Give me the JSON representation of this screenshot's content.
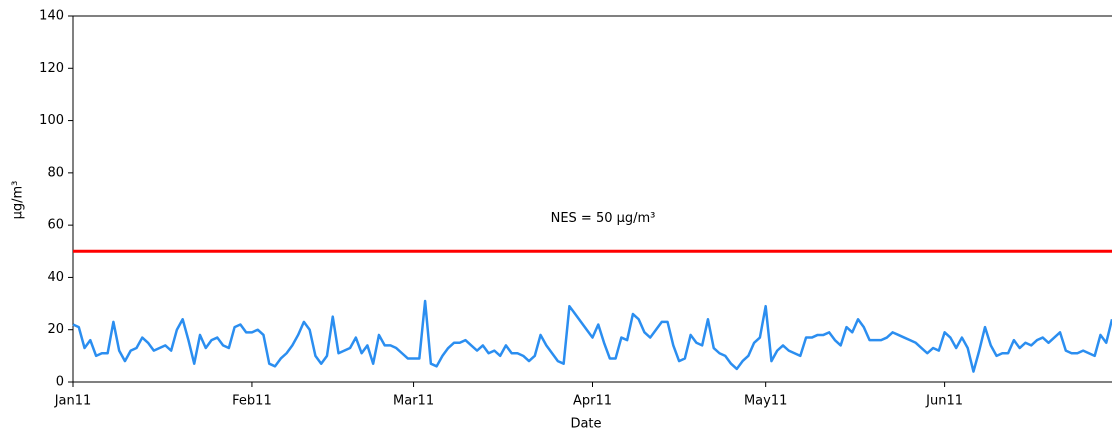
{
  "chart_data": {
    "type": "line",
    "xlabel": "Date",
    "ylabel": "µg/m³",
    "series": [
      {
        "color": "#2b8ef0",
        "values": [
          22,
          21,
          13,
          16,
          10,
          11,
          11,
          23,
          12,
          8,
          12,
          13,
          17,
          15,
          12,
          13,
          14,
          12,
          20,
          24,
          16,
          7,
          18,
          13,
          16,
          17,
          14,
          13,
          21,
          22,
          19,
          19,
          20,
          18,
          7,
          6,
          9,
          11,
          14,
          18,
          23,
          20,
          10,
          7,
          10,
          25,
          11,
          12,
          13,
          17,
          11,
          14,
          7,
          18,
          14,
          14,
          13,
          11,
          9,
          9,
          9,
          31,
          7,
          6,
          10,
          13,
          15,
          15,
          16,
          14,
          12,
          14,
          11,
          12,
          10,
          14,
          11,
          11,
          10,
          8,
          10,
          18,
          14,
          11,
          8,
          7,
          29,
          26,
          23,
          20,
          17,
          22,
          15,
          9,
          9,
          17,
          16,
          26,
          24,
          19,
          17,
          20,
          23,
          23,
          14,
          8,
          9,
          18,
          15,
          14,
          24,
          13,
          11,
          10,
          7,
          5,
          8,
          10,
          15,
          17,
          29,
          8,
          12,
          14,
          12,
          11,
          10,
          17,
          17,
          18,
          18,
          19,
          16,
          14,
          21,
          19,
          24,
          21,
          16,
          16,
          16,
          17,
          19,
          18,
          17,
          16,
          15,
          13,
          11,
          13,
          12,
          19,
          17,
          13,
          17,
          13,
          4,
          12,
          21,
          14,
          10,
          11,
          11,
          16,
          13,
          15,
          14,
          16,
          17,
          15,
          17,
          19,
          12,
          11,
          11,
          12,
          11,
          10,
          18,
          15,
          24
        ]
      }
    ],
    "threshold": {
      "value": 50,
      "label": "NES = 50 µg/m³",
      "color": "#ff0000"
    },
    "xlim": [
      0,
      180
    ],
    "xticks": [
      {
        "value": 0,
        "label": "Jan11"
      },
      {
        "value": 31,
        "label": "Feb11"
      },
      {
        "value": 59,
        "label": "Mar11"
      },
      {
        "value": 90,
        "label": "Apr11"
      },
      {
        "value": 120,
        "label": "May11"
      },
      {
        "value": 151,
        "label": "Jun11"
      }
    ],
    "ylim": [
      0,
      140
    ],
    "yticks": [
      0,
      20,
      40,
      60,
      80,
      100,
      120,
      140
    ],
    "grid": false
  }
}
